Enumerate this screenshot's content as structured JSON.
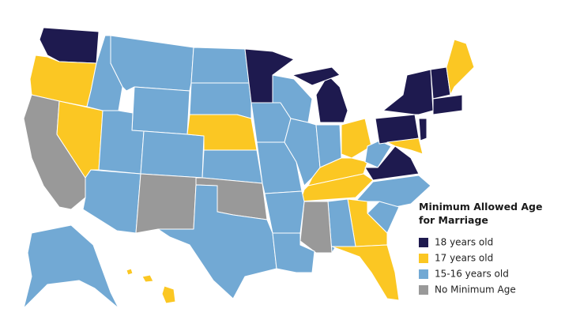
{
  "legend": {
    "title": [
      "Minimum Allowed Age",
      "for Marriage"
    ],
    "items": [
      {
        "label": "18 years old",
        "color": "#1e1a4f"
      },
      {
        "label": "17 years old",
        "color": "#fbc723"
      },
      {
        "label": "15-16 years old",
        "color": "#72a9d4"
      },
      {
        "label": "No Minimum Age",
        "color": "#999999"
      }
    ]
  }
}
